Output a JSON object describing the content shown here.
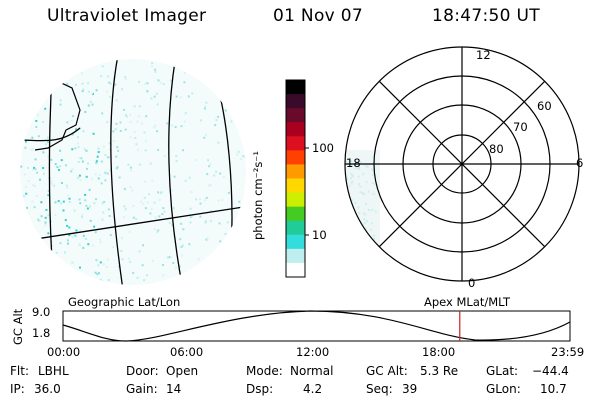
{
  "header": {
    "title": "Ultraviolet Imager",
    "date": "01 Nov 07",
    "time": "18:47:50 UT"
  },
  "colorbar": {
    "label": "photon cm⁻²s⁻¹",
    "ticks": [
      "100",
      "10"
    ],
    "colors": [
      "#000000",
      "#3a0a2a",
      "#6a0a2a",
      "#aa0020",
      "#dd1020",
      "#ff4000",
      "#ff9a00",
      "#ffd800",
      "#ccee00",
      "#44cc22",
      "#22cc99",
      "#33dddd",
      "#bfeeee",
      "#ffffff"
    ]
  },
  "polar": {
    "mlt_labels": {
      "top": "12",
      "left": "18",
      "right": "6",
      "bottom": "0"
    },
    "lat_labels": [
      "60",
      "70",
      "80"
    ]
  },
  "panels": {
    "left_caption": "Geographic Lat/Lon",
    "right_caption": "Apex MLat/MLT"
  },
  "altitude_plot": {
    "ylabel": "GC Alt",
    "yticks": [
      "9.0",
      "1.8"
    ],
    "xticks": [
      "00:00",
      "06:00",
      "12:00",
      "18:00",
      "23:59"
    ],
    "marker_fraction": 0.7826
  },
  "info": {
    "flt_label": "Flt:",
    "flt_value": "LBHL",
    "ip_label": "IP:",
    "ip_value": "36.0",
    "door_label": "Door:",
    "door_value": "Open",
    "gain_label": "Gain:",
    "gain_value": "14",
    "mode_label": "Mode:",
    "mode_value": "Normal",
    "dsp_label": "Dsp:",
    "dsp_value": "4.2",
    "gcalt_label": "GC Alt:",
    "gcalt_value": "5.3 Re",
    "seq_label": "Seq:",
    "seq_value": "39",
    "glat_label": "GLat:",
    "glat_value": "−44.4",
    "glon_label": "GLon:",
    "glon_value": "10.7"
  }
}
